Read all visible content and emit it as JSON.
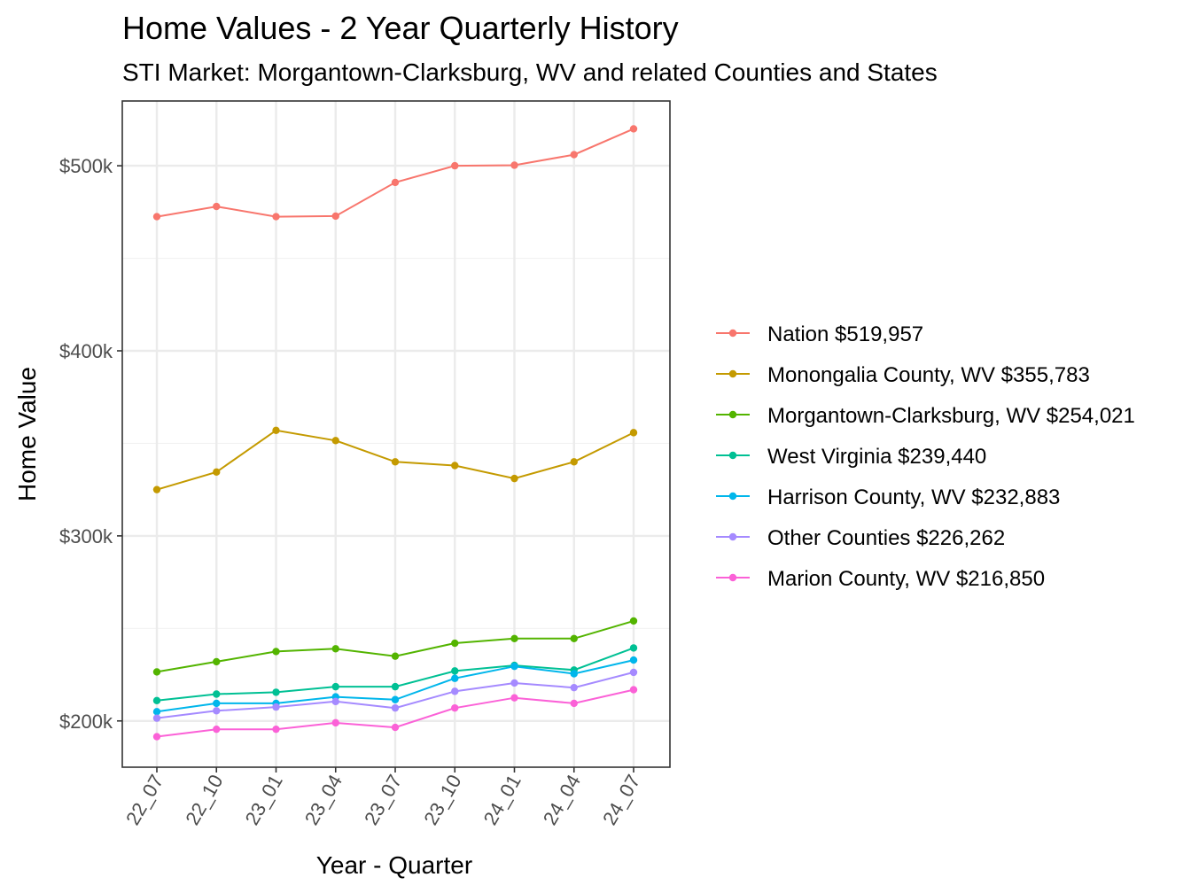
{
  "chart_data": {
    "type": "line",
    "title": "Home Values - 2 Year Quarterly History",
    "subtitle": "STI Market: Morgantown-Clarksburg, WV and related Counties and States",
    "xlabel": "Year - Quarter",
    "ylabel": "Home Value",
    "categories": [
      "22_07",
      "22_10",
      "23_01",
      "23_04",
      "23_07",
      "23_10",
      "24_01",
      "24_04",
      "24_07"
    ],
    "ylim": [
      175000,
      535000
    ],
    "yticks": [
      {
        "value": 200000,
        "label": "$200k"
      },
      {
        "value": 300000,
        "label": "$300k"
      },
      {
        "value": 400000,
        "label": "$400k"
      },
      {
        "value": 500000,
        "label": "$500k"
      }
    ],
    "grid": true,
    "legend_position": "right",
    "series": [
      {
        "name": "Nation $519,957",
        "color": "#F8766D",
        "values": [
          472500,
          478000,
          472500,
          472800,
          491000,
          500000,
          500300,
          506000,
          519957
        ]
      },
      {
        "name": "Monongalia County, WV $355,783",
        "color": "#C49A00",
        "values": [
          325000,
          334500,
          357000,
          351500,
          340000,
          338000,
          331000,
          340000,
          355783
        ]
      },
      {
        "name": "Morgantown-Clarksburg, WV $254,021",
        "color": "#53B400",
        "values": [
          226500,
          232000,
          237500,
          239000,
          235000,
          242000,
          244500,
          244500,
          254021
        ]
      },
      {
        "name": "West Virginia $239,440",
        "color": "#00C094",
        "values": [
          211000,
          214500,
          215500,
          218500,
          218500,
          227000,
          230000,
          227500,
          239440
        ]
      },
      {
        "name": "Harrison County, WV $232,883",
        "color": "#00B6EB",
        "values": [
          205000,
          209500,
          209500,
          213000,
          211500,
          223000,
          229500,
          225500,
          232883
        ]
      },
      {
        "name": "Other Counties $226,262",
        "color": "#A58AFF",
        "values": [
          201500,
          205500,
          207500,
          210500,
          207000,
          216000,
          220500,
          218000,
          226262
        ]
      },
      {
        "name": "Marion County, WV $216,850",
        "color": "#FB61D7",
        "values": [
          191500,
          195500,
          195500,
          199000,
          196500,
          207000,
          212500,
          209500,
          216850
        ]
      }
    ]
  }
}
